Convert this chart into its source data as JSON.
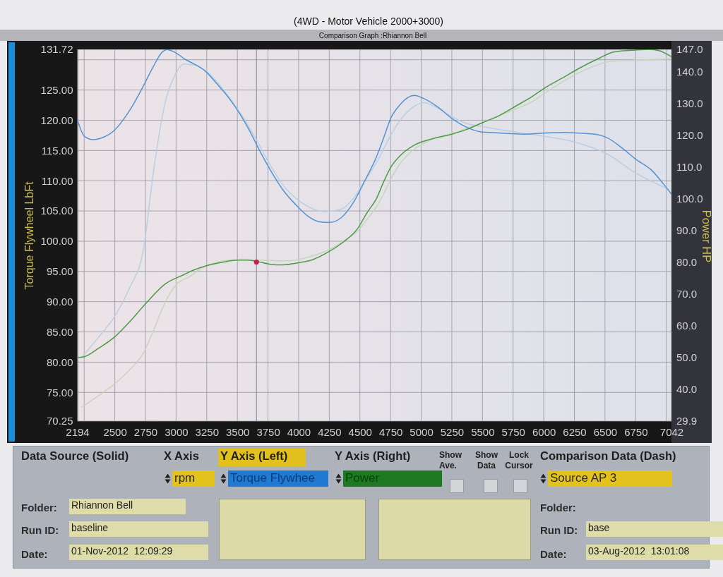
{
  "chart_data": {
    "type": "line",
    "title": "(4WD - Motor Vehicle 2000+3000)",
    "subtitle": "Comparison Graph :Rhiannon Bell",
    "ylabel": "Torque Flywheel LbFt",
    "y2label": "Power HP",
    "xlim": [
      2194,
      7042
    ],
    "ylim": [
      70.25,
      131.72
    ],
    "y2lim": [
      29.9,
      147.0
    ],
    "xticks": [
      2194,
      {
        "value": 2250,
        "label": null
      },
      2500,
      2750,
      3000,
      3250,
      3500,
      3750,
      4000,
      4250,
      4500,
      4750,
      5000,
      5250,
      5500,
      5750,
      6000,
      6250,
      6500,
      6750,
      {
        "value": 7000,
        "label": null
      },
      7042
    ],
    "yticks": [
      70.25,
      {
        "value": 75,
        "label": "75.00"
      },
      {
        "value": 80,
        "label": "80.00"
      },
      {
        "value": 85,
        "label": "85.00"
      },
      {
        "value": 90,
        "label": "90.00"
      },
      {
        "value": 95,
        "label": "95.00"
      },
      {
        "value": 100,
        "label": "100.00"
      },
      {
        "value": 105,
        "label": "105.00"
      },
      {
        "value": 110,
        "label": "110.00"
      },
      {
        "value": 115,
        "label": "115.00"
      },
      {
        "value": 120,
        "label": "120.00"
      },
      {
        "value": 125,
        "label": "125.00"
      },
      {
        "value": 130,
        "label": null
      },
      131.72
    ],
    "y2ticks": [
      29.9,
      {
        "value": 40,
        "label": "40.0"
      },
      {
        "value": 50,
        "label": "50.0"
      },
      {
        "value": 60,
        "label": "60.0"
      },
      {
        "value": 70,
        "label": "70.0"
      },
      {
        "value": 80,
        "label": "80.0"
      },
      {
        "value": 90,
        "label": "90.0"
      },
      {
        "value": 100,
        "label": "100.0"
      },
      {
        "value": 110,
        "label": "110.0"
      },
      {
        "value": 120,
        "label": "120.0"
      },
      {
        "value": 130,
        "label": "130.0"
      },
      {
        "value": 140,
        "label": "140.0"
      },
      {
        "value": 147,
        "label": "147.0"
      }
    ],
    "grid": true,
    "ref_lines": [
      {
        "axis": "x",
        "value": 3656,
        "color": "#8c8c96"
      }
    ],
    "series": [
      {
        "color": "#b9cfe3",
        "x": [
          2230,
          2370,
          2504,
          2619,
          2734,
          2812,
          2907,
          2994,
          3061,
          3157,
          3253,
          3426,
          3599,
          3771,
          3868,
          3983,
          4079,
          4213,
          4348,
          4444,
          4540,
          4636,
          4751,
          4828,
          4943,
          5020,
          5135,
          5250,
          5365,
          5519,
          5788,
          6018,
          6249,
          6518,
          6748,
          7017
        ],
        "values": [
          80.8,
          84.2,
          87.7,
          92.2,
          98.7,
          111.0,
          122.6,
          127.6,
          129.3,
          129.1,
          128.0,
          124.0,
          118.8,
          112.5,
          109.4,
          107.0,
          105.7,
          104.9,
          105.3,
          107.0,
          110.0,
          113.0,
          117.5,
          120.0,
          122.3,
          122.9,
          122.0,
          120.6,
          119.5,
          118.9,
          118.0,
          117.3,
          116.4,
          114.4,
          111.3,
          108.6
        ]
      },
      {
        "color": "#c6d6bc",
        "axis": "y2",
        "x": [
          2230,
          2370,
          2504,
          2619,
          2734,
          2812,
          2907,
          3003,
          3100,
          3253,
          3503,
          3700,
          3900,
          4100,
          4252,
          4367,
          4482,
          4559,
          4636,
          4694,
          4751,
          4828,
          4943,
          5078,
          5250,
          5365,
          5500,
          5634,
          5788,
          5903,
          6018,
          6172,
          6364,
          6556,
          6748,
          7042
        ],
        "values": [
          34.3,
          38.0,
          41.8,
          46.0,
          51.4,
          58.1,
          67.0,
          73.0,
          75.2,
          79.0,
          80.8,
          80.6,
          80.4,
          81.8,
          84.0,
          86.6,
          89.8,
          93.5,
          97.5,
          101.5,
          106.0,
          111.0,
          115.5,
          118.5,
          120.5,
          122.0,
          124.0,
          126.1,
          128.5,
          130.5,
          133.5,
          137.2,
          141.0,
          143.3,
          143.6,
          144.0
        ]
      },
      {
        "color": "#5193d4",
        "x": [
          2194,
          2254,
          2322,
          2408,
          2495,
          2562,
          2639,
          2734,
          2812,
          2888,
          2927,
          2984,
          3080,
          3157,
          3234,
          3330,
          3426,
          3522,
          3599,
          3676,
          3771,
          3868,
          3983,
          4079,
          4175,
          4252,
          4348,
          4444,
          4540,
          4636,
          4694,
          4751,
          4828,
          4943,
          5020,
          5135,
          5250,
          5365,
          5481,
          5634,
          5826,
          6018,
          6172,
          6268,
          6441,
          6518,
          6652,
          6748,
          6882,
          6979,
          7042
        ],
        "values": [
          120.1,
          117.3,
          116.8,
          117.2,
          118.3,
          119.9,
          122.2,
          125.7,
          128.8,
          131.3,
          131.7,
          131.3,
          130.0,
          129.2,
          128.2,
          126.1,
          123.8,
          121.0,
          118.3,
          115.2,
          111.7,
          108.6,
          105.9,
          104.1,
          103.2,
          103.1,
          103.9,
          106.3,
          110.0,
          114.0,
          117.1,
          120.3,
          122.6,
          124.1,
          123.6,
          122.2,
          120.3,
          118.9,
          118.1,
          117.9,
          117.7,
          117.9,
          118.0,
          117.9,
          117.6,
          117.1,
          115.2,
          113.6,
          111.7,
          109.4,
          107.8
        ]
      },
      {
        "color": "#4f9a46",
        "axis": "y2",
        "x": [
          2194,
          2245,
          2370,
          2504,
          2619,
          2754,
          2907,
          3061,
          3138,
          3253,
          3388,
          3503,
          3580,
          3647,
          3771,
          3868,
          4002,
          4117,
          4252,
          4367,
          4482,
          4559,
          4636,
          4694,
          4751,
          4828,
          4943,
          5078,
          5250,
          5365,
          5500,
          5634,
          5788,
          5903,
          6018,
          6172,
          6287,
          6441,
          6575,
          6748,
          6863,
          6940,
          7042
        ],
        "values": [
          49.9,
          50.1,
          52.9,
          56.6,
          61.1,
          67.0,
          73.0,
          76.0,
          77.4,
          78.9,
          80.0,
          80.6,
          80.6,
          80.3,
          79.3,
          79.1,
          79.8,
          80.8,
          83.4,
          86.4,
          90.6,
          95.6,
          100.1,
          105.3,
          109.8,
          113.5,
          116.8,
          118.7,
          120.3,
          121.7,
          123.9,
          126.1,
          129.5,
          132.1,
          135.1,
          138.4,
          141.0,
          144.0,
          146.2,
          146.8,
          147.0,
          146.6,
          144.7
        ]
      },
      {
        "type": "scatter",
        "color": "#c2204e",
        "axis": "y2",
        "x": [
          3656
        ],
        "values": [
          80.0
        ]
      }
    ],
    "annotations": [
      "Data Source (Solid)",
      "X Axis",
      "Y Axis (Left)",
      "Y Axis (Right)",
      "Show Ave.",
      "Show Data",
      "Lock Cursor",
      "Comparison Data (Dash)",
      "rpm",
      "Torque Flywhee",
      "Power",
      "Source AP 3",
      "Folder:",
      "Rhiannon Bell",
      "Run ID:",
      "baseline",
      "Date:",
      "01-Nov-2012  12:09:29",
      "Folder:",
      "Run ID:",
      "base",
      "Date:",
      "03-Aug-2012  13:01:08"
    ]
  }
}
